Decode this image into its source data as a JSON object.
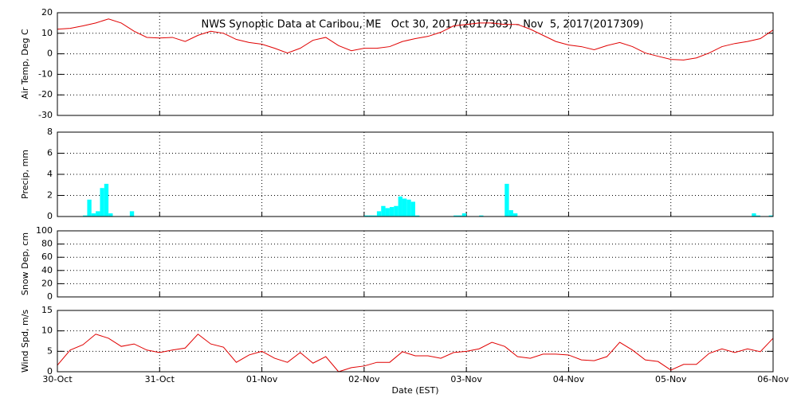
{
  "chart_data": [
    {
      "type": "line",
      "title": "NWS Synoptic Data at Caribou, ME   Oct 30, 2017(2017303) - Nov  5, 2017(2017309)",
      "ylabel": "Air Temp, Deg C",
      "x": [
        0,
        0.125,
        0.25,
        0.375,
        0.5,
        0.625,
        0.75,
        0.875,
        1,
        1.125,
        1.25,
        1.375,
        1.5,
        1.625,
        1.75,
        1.875,
        2,
        2.125,
        2.25,
        2.375,
        2.5,
        2.625,
        2.75,
        2.875,
        3,
        3.125,
        3.25,
        3.375,
        3.5,
        3.625,
        3.75,
        3.875,
        4,
        4.125,
        4.25,
        4.375,
        4.5,
        4.625,
        4.75,
        4.875,
        5,
        5.125,
        5.25,
        5.375,
        5.5,
        5.625,
        5.75,
        5.875,
        6,
        6.125,
        6.25,
        6.375,
        6.5,
        6.625,
        6.75,
        6.875,
        7
      ],
      "values": [
        12,
        12.4,
        13.6,
        15,
        17,
        15,
        11,
        8,
        7.7,
        8,
        6,
        9,
        11,
        10,
        7,
        5.5,
        4.7,
        2.7,
        0.4,
        2.7,
        6.6,
        8,
        4,
        1.5,
        2.7,
        2.7,
        3.5,
        6,
        7.4,
        8.5,
        10.5,
        13.6,
        14.3,
        15,
        15,
        14.3,
        14.3,
        12,
        9,
        6,
        4.3,
        3.5,
        2,
        4,
        5.5,
        3.5,
        0.4,
        -1.2,
        -2.7,
        -3,
        -2,
        0.4,
        3.5,
        5,
        6,
        7.4,
        11.6
      ],
      "color": "#e00000",
      "xlim": [
        0,
        7
      ],
      "ylim": [
        -30,
        20
      ],
      "yticks": [
        -30,
        -20,
        -10,
        0,
        10,
        20
      ],
      "grid": true
    },
    {
      "type": "bar",
      "ylabel": "Precip, mm",
      "x": [
        0.25,
        0.2917,
        0.3333,
        0.375,
        0.4167,
        0.4583,
        0.5,
        0.7083,
        3,
        3.0417,
        3.0833,
        3.125,
        3.1667,
        3.2083,
        3.25,
        3.2917,
        3.3333,
        3.375,
        3.4167,
        3.4583,
        3.5,
        3.875,
        3.9167,
        3.9583,
        4.125,
        4.375,
        4.4167,
        4.4583,
        6.7917,
        6.8333,
        6.9583
      ],
      "values": [
        0.1,
        1.6,
        0.3,
        0.5,
        2.7,
        3.1,
        0.3,
        0.5,
        0.1,
        0.1,
        0.1,
        0.5,
        1.0,
        0.8,
        0.9,
        1.0,
        1.9,
        1.7,
        1.6,
        1.4,
        0.1,
        0.1,
        0.1,
        0.3,
        0.1,
        3.1,
        0.6,
        0.3,
        0.3,
        0.1,
        0.1
      ],
      "color": "#00ffff",
      "xlim": [
        0,
        7
      ],
      "ylim": [
        0,
        8
      ],
      "yticks": [
        0,
        2,
        4,
        6,
        8
      ],
      "grid": true
    },
    {
      "type": "line",
      "ylabel": "Snow Dep, cm",
      "xlim": [
        0,
        7
      ],
      "ylim": [
        0,
        100
      ],
      "yticks": [
        0,
        20,
        40,
        60,
        80,
        100
      ],
      "grid": true
    },
    {
      "type": "line",
      "ylabel": "Wind Spd, m/s",
      "xlabel": "Date (EST)",
      "x": [
        0,
        0.125,
        0.25,
        0.375,
        0.5,
        0.625,
        0.75,
        0.875,
        1,
        1.125,
        1.25,
        1.375,
        1.5,
        1.625,
        1.75,
        1.875,
        2,
        2.125,
        2.25,
        2.375,
        2.5,
        2.625,
        2.75,
        2.875,
        3,
        3.125,
        3.25,
        3.375,
        3.5,
        3.625,
        3.75,
        3.875,
        4,
        4.125,
        4.25,
        4.375,
        4.5,
        4.625,
        4.75,
        4.875,
        5,
        5.125,
        5.25,
        5.375,
        5.5,
        5.625,
        5.75,
        5.875,
        6,
        6.125,
        6.25,
        6.375,
        6.5,
        6.625,
        6.75,
        6.875,
        7
      ],
      "values": [
        1.6,
        5.3,
        6.6,
        9.2,
        8.2,
        6.2,
        6.8,
        5.3,
        4.7,
        5.3,
        5.8,
        9.2,
        6.8,
        6,
        2.3,
        4.1,
        5,
        3.3,
        2.3,
        4.7,
        2.1,
        3.7,
        0,
        1,
        1.4,
        2.3,
        2.3,
        4.9,
        3.9,
        3.9,
        3.3,
        4.7,
        5,
        5.6,
        7.2,
        6.2,
        3.7,
        3.3,
        4.3,
        4.3,
        4.1,
        2.9,
        2.7,
        3.7,
        7.2,
        5.3,
        2.9,
        2.5,
        0.4,
        1.8,
        1.8,
        4.5,
        5.6,
        4.7,
        5.6,
        4.9,
        8.2
      ],
      "color": "#e00000",
      "xlim": [
        0,
        7
      ],
      "ylim": [
        0,
        15
      ],
      "yticks": [
        0,
        5,
        10,
        15
      ],
      "grid": true,
      "xticks": [
        {
          "value": 0,
          "label": "30-Oct"
        },
        {
          "value": 1,
          "label": "31-Oct"
        },
        {
          "value": 2,
          "label": "01-Nov"
        },
        {
          "value": 3,
          "label": "02-Nov"
        },
        {
          "value": 4,
          "label": "03-Nov"
        },
        {
          "value": 5,
          "label": "04-Nov"
        },
        {
          "value": 6,
          "label": "05-Nov"
        },
        {
          "value": 7,
          "label": "06-Nov"
        }
      ]
    }
  ]
}
